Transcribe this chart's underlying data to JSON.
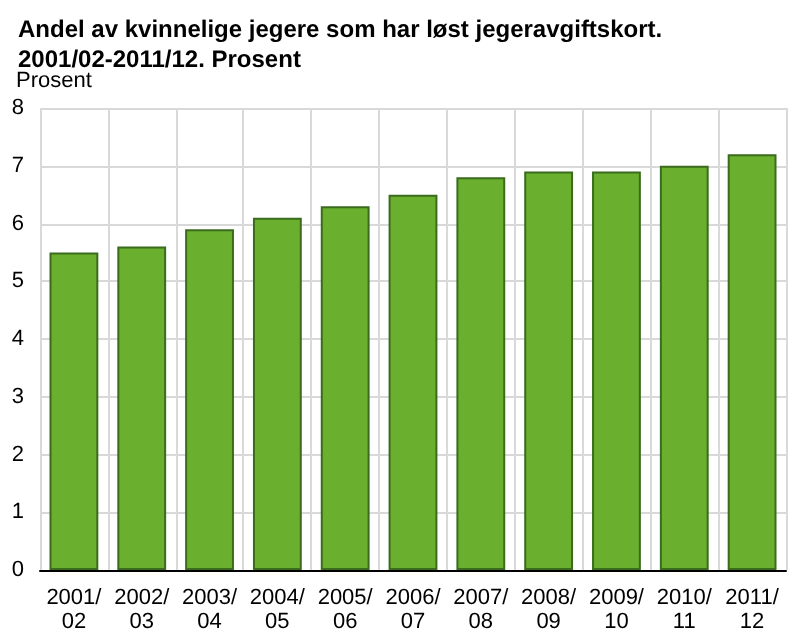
{
  "chart_data": {
    "type": "bar",
    "title": "Andel av kvinnelige jegere som har løst jegeravgiftskort.\n2001/02-2011/12. Prosent",
    "ylabel": "Prosent",
    "categories": [
      "2001/02",
      "2002/03",
      "2003/04",
      "2004/05",
      "2005/06",
      "2006/07",
      "2007/08",
      "2008/09",
      "2009/10",
      "2010/11",
      "2011/12"
    ],
    "values": [
      5.5,
      5.6,
      5.9,
      6.1,
      6.3,
      6.5,
      6.8,
      6.9,
      6.9,
      7.0,
      7.2
    ],
    "color": "#6aaf2e",
    "ylim": [
      0,
      8
    ],
    "yticks": [
      0,
      1,
      2,
      3,
      4,
      5,
      6,
      7,
      8
    ],
    "grid": true
  }
}
